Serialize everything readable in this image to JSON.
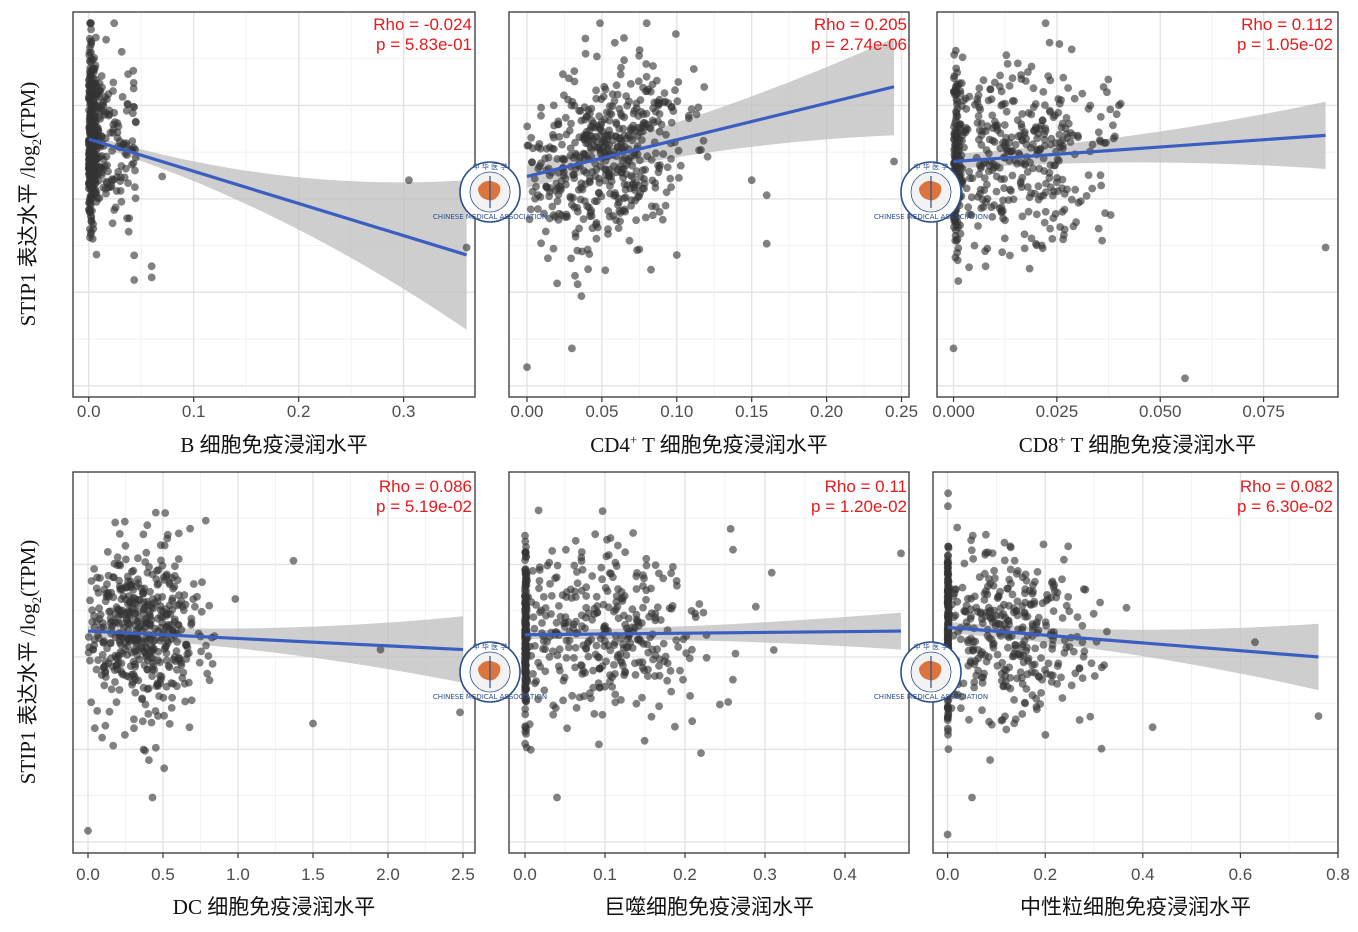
{
  "figure": {
    "ylabel": "STIP1 表达水平 /log2(TPM)",
    "ylabel_main": "STIP1 表达水平 /log",
    "ylabel_sub": "2",
    "ylabel_tail": "(TPM)",
    "watermark_text": "CHINESE MEDICAL ASSOCIATION",
    "watermark_top": "中 华 医 学"
  },
  "colors": {
    "points": "#333333",
    "fit_line": "#3b5fc0",
    "ribbon": "#bdbdbd",
    "stats": "#e41a1c"
  },
  "chart_data": [
    {
      "type": "scatter",
      "xlabel": "B 细胞免疫浸润水平",
      "xlabel_sup": "",
      "xlabel_pre": "",
      "rho": "Rho = -0.024",
      "p": "p = 5.83e-01",
      "xlim": [
        -0.015,
        0.368
      ],
      "xticks": [
        0,
        0.1,
        0.2,
        0.3
      ],
      "xtick_labels": [
        "0.0",
        "0.1",
        "0.2",
        "0.3"
      ],
      "fit": {
        "x": [
          0.0,
          0.36
        ],
        "y": [
          0.66,
          0.35
        ]
      },
      "ribbon_halfwidth": [
        0.012,
        0.2
      ],
      "dist": "pile",
      "seed": 11,
      "n": 480,
      "x_max": 0.14,
      "outliers": [
        [
          0.305,
          0.55
        ],
        [
          0.36,
          0.37
        ],
        [
          0.06,
          0.29
        ],
        [
          0.06,
          0.32
        ],
        [
          0.07,
          0.56
        ]
      ]
    },
    {
      "type": "scatter",
      "xlabel": "CD4+ T 细胞免疫浸润水平",
      "xlabel_pre": "CD4",
      "xlabel_sup": "+",
      "xlabel_post": " T 细胞免疫浸润水平",
      "rho": "Rho = 0.205",
      "p": "p = 2.74e-06",
      "xlim": [
        -0.012,
        0.255
      ],
      "xticks": [
        0,
        0.05,
        0.1,
        0.15,
        0.2,
        0.25
      ],
      "xtick_labels": [
        "0.00",
        "0.05",
        "0.10",
        "0.15",
        "0.20",
        "0.25"
      ],
      "fit": {
        "x": [
          0.0,
          0.245
        ],
        "y": [
          0.56,
          0.8
        ]
      },
      "ribbon_halfwidth": [
        0.03,
        0.13
      ],
      "dist": "spread",
      "seed": 23,
      "n": 500,
      "x_center": 0.05,
      "x_spread": 0.028,
      "x_max": 0.16,
      "outliers": [
        [
          0.245,
          0.6
        ],
        [
          0.16,
          0.51
        ],
        [
          0.16,
          0.38
        ],
        [
          0.1,
          0.35
        ],
        [
          0.0,
          0.05
        ],
        [
          0.03,
          0.1
        ],
        [
          0.15,
          0.55
        ]
      ]
    },
    {
      "type": "scatter",
      "xlabel": "CD8+ T 细胞免疫浸润水平",
      "xlabel_pre": "CD8",
      "xlabel_sup": "+",
      "xlabel_post": " T 细胞免疫浸润水平",
      "rho": "Rho = 0.112",
      "p": "p = 1.05e-02",
      "xlim": [
        -0.004,
        0.093
      ],
      "xticks": [
        0,
        0.025,
        0.05,
        0.075
      ],
      "xtick_labels": [
        "0.000",
        "0.025",
        "0.050",
        "0.075"
      ],
      "fit": {
        "x": [
          0.0,
          0.09
        ],
        "y": [
          0.6,
          0.67
        ]
      },
      "ribbon_halfwidth": [
        0.02,
        0.09
      ],
      "dist": "pile_spread",
      "seed": 37,
      "n": 500,
      "x_center": 0.016,
      "x_spread": 0.011,
      "x_max": 0.06,
      "outliers": [
        [
          0.09,
          0.37
        ],
        [
          0.056,
          0.02
        ],
        [
          0.0,
          0.1
        ],
        [
          0.04,
          0.75
        ]
      ]
    },
    {
      "type": "scatter",
      "xlabel": "DC 细胞免疫浸润水平",
      "xlabel_pre": "",
      "xlabel_sup": "",
      "rho": "Rho = 0.086",
      "p": "p = 5.19e-02",
      "xlim": [
        -0.1,
        2.58
      ],
      "xticks": [
        0,
        0.5,
        1.0,
        1.5,
        2.0,
        2.5
      ],
      "xtick_labels": [
        "0.0",
        "0.5",
        "1.0",
        "1.5",
        "2.0",
        "2.5"
      ],
      "fit": {
        "x": [
          0.0,
          2.5
        ],
        "y": [
          0.57,
          0.52
        ]
      },
      "ribbon_halfwidth": [
        0.015,
        0.09
      ],
      "dist": "spread",
      "seed": 53,
      "n": 480,
      "x_center": 0.38,
      "x_spread": 0.22,
      "x_max": 1.2,
      "outliers": [
        [
          2.48,
          0.35
        ],
        [
          1.5,
          0.32
        ],
        [
          1.95,
          0.52
        ],
        [
          1.37,
          0.76
        ],
        [
          0.0,
          0.03
        ],
        [
          0.43,
          0.12
        ]
      ]
    },
    {
      "type": "scatter",
      "xlabel": "巨噬细胞免疫浸润水平",
      "xlabel_pre": "",
      "xlabel_sup": "",
      "rho": "Rho = 0.11",
      "p": "p = 1.20e-02",
      "xlim": [
        -0.02,
        0.48
      ],
      "xticks": [
        0,
        0.1,
        0.2,
        0.3,
        0.4
      ],
      "xtick_labels": [
        "0.0",
        "0.1",
        "0.2",
        "0.3",
        "0.4"
      ],
      "fit": {
        "x": [
          0.0,
          0.47
        ],
        "y": [
          0.56,
          0.57
        ]
      },
      "ribbon_halfwidth": [
        0.012,
        0.05
      ],
      "dist": "pile_spread",
      "seed": 71,
      "n": 520,
      "x_center": 0.1,
      "x_spread": 0.07,
      "x_max": 0.47,
      "outliers": [
        [
          0.47,
          0.78
        ],
        [
          0.22,
          0.24
        ],
        [
          0.04,
          0.12
        ],
        [
          0.26,
          0.79
        ]
      ]
    },
    {
      "type": "scatter",
      "xlabel": "中性粒细胞免疫浸润水平",
      "xlabel_pre": "",
      "xlabel_sup": "",
      "rho": "Rho = 0.082",
      "p": "p = 6.30e-02",
      "xlim": [
        -0.03,
        0.8
      ],
      "xticks": [
        0,
        0.2,
        0.4,
        0.6,
        0.8
      ],
      "xtick_labels": [
        "0.0",
        "0.2",
        "0.4",
        "0.6",
        "0.8"
      ],
      "fit": {
        "x": [
          0.0,
          0.76
        ],
        "y": [
          0.58,
          0.5
        ]
      },
      "ribbon_halfwidth": [
        0.015,
        0.09
      ],
      "dist": "pile_spread",
      "seed": 89,
      "n": 500,
      "x_center": 0.12,
      "x_spread": 0.09,
      "x_max": 0.55,
      "outliers": [
        [
          0.76,
          0.34
        ],
        [
          0.0,
          0.02
        ],
        [
          0.05,
          0.12
        ],
        [
          0.42,
          0.31
        ],
        [
          0.63,
          0.54
        ]
      ]
    }
  ]
}
